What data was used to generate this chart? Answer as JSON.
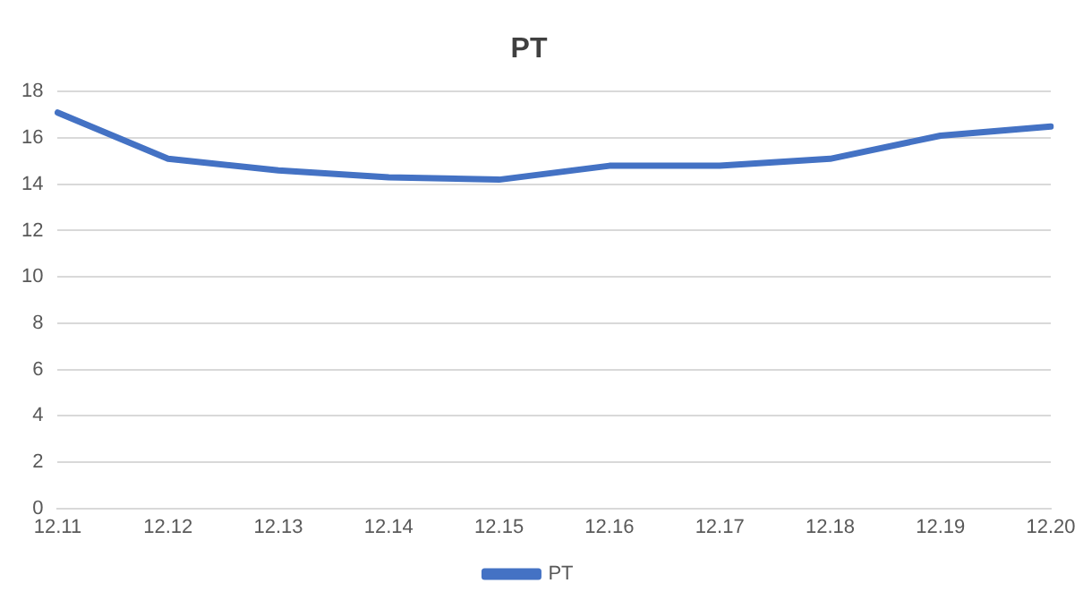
{
  "chart_data": {
    "type": "line",
    "title": "PT",
    "categories": [
      "12.11",
      "12.12",
      "12.13",
      "12.14",
      "12.15",
      "12.16",
      "12.17",
      "12.18",
      "12.19",
      "12.20"
    ],
    "series": [
      {
        "name": "PT",
        "color": "#4472c4",
        "values": [
          17.1,
          15.1,
          14.6,
          14.3,
          14.2,
          14.8,
          14.8,
          15.1,
          16.1,
          16.5
        ]
      }
    ],
    "ylim": [
      0,
      18
    ],
    "yticks": [
      0,
      2,
      4,
      6,
      8,
      10,
      12,
      14,
      16,
      18
    ],
    "grid": "y",
    "legend": "bottom",
    "marker": "none",
    "line_style": "solid"
  }
}
